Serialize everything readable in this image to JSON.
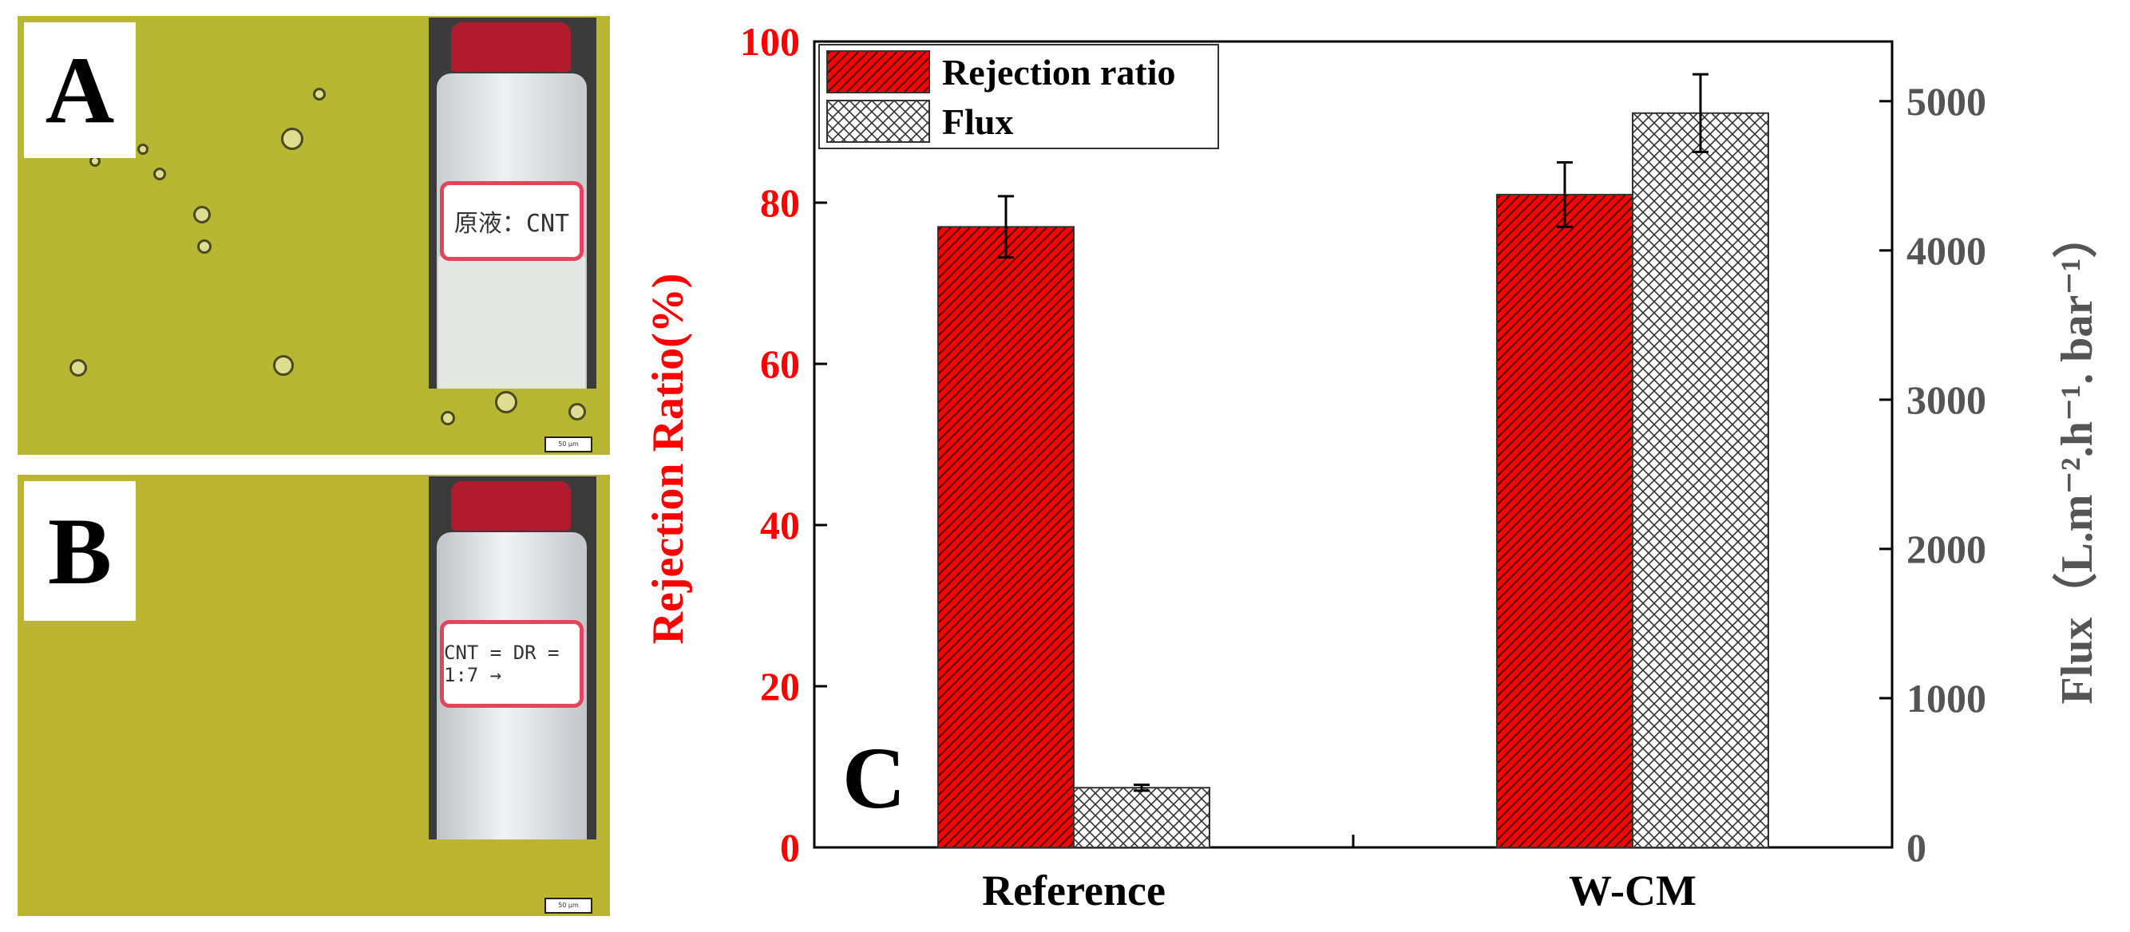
{
  "panels": {
    "a": {
      "letter": "A",
      "bottle_label": "原液：CNT",
      "scale_text": "50 μm"
    },
    "b": {
      "letter": "B",
      "bottle_label": "CNT = DR = 1:7 →",
      "scale_text": "50 μm"
    }
  },
  "colors": {
    "rejection": "#ff0000",
    "flux_fill": "#ffffff",
    "left_axis": "#ff0000",
    "right_axis": "#555555",
    "micro_bg": "#b9b634",
    "label_border": "#e3455a",
    "cap": "#b01c2e"
  },
  "chart_data": {
    "type": "bar",
    "panel_letter": "C",
    "categories": [
      "Reference",
      "W-CM"
    ],
    "series": [
      {
        "name": "Rejection ratio",
        "axis": "left",
        "pattern": "hatch",
        "values": [
          77,
          81
        ],
        "errors": [
          3.8,
          4.0
        ]
      },
      {
        "name": "Flux",
        "axis": "right",
        "pattern": "crosshatch",
        "values": [
          400,
          4920
        ],
        "errors": [
          20,
          260
        ]
      }
    ],
    "ylabel": "Rejection Ratio(%)",
    "ylim": [
      0,
      100
    ],
    "yticks": [
      0,
      20,
      40,
      60,
      80,
      100
    ],
    "y2label": "Flux（L.m⁻².h⁻¹. bar⁻¹）",
    "y2lim": [
      0,
      5400
    ],
    "y2ticks": [
      0,
      1000,
      2000,
      3000,
      4000,
      5000
    ],
    "legend_position": "top-left"
  }
}
